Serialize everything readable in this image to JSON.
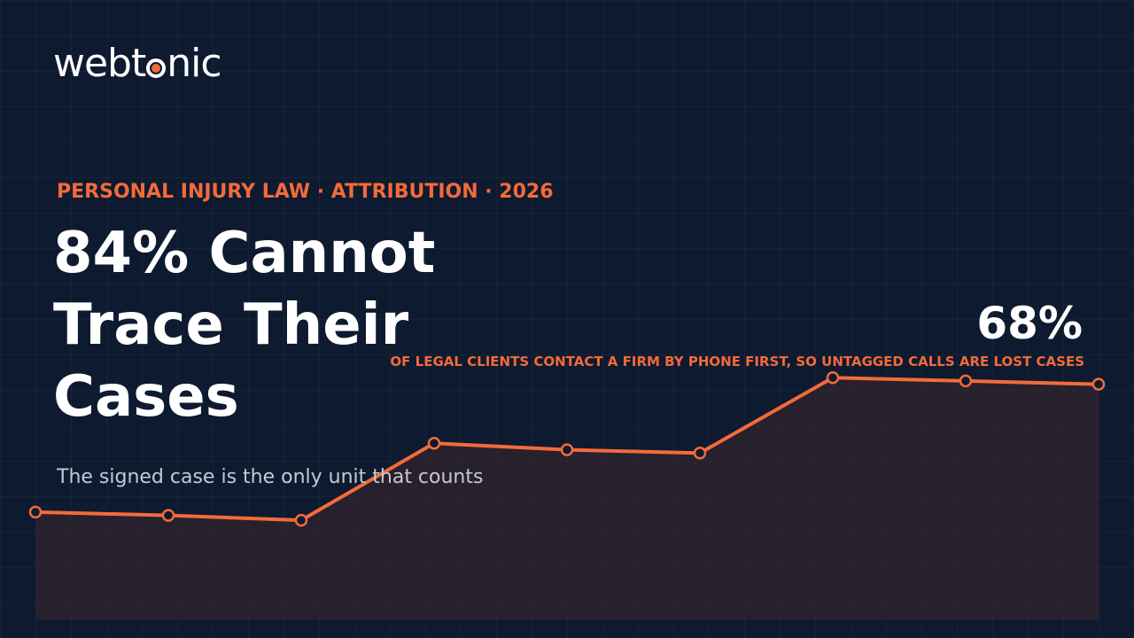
{
  "logo": {
    "left": "webt",
    "right": "nic"
  },
  "kicker": "PERSONAL INJURY LAW · ATTRIBUTION · 2026",
  "title": "84% Cannot Trace Their Cases",
  "subtitle": "The signed case is the only unit that counts",
  "stat": {
    "value": "68%",
    "caption": "OF LEGAL CLIENTS CONTACT A FIRM BY PHONE FIRST, SO UNTAGGED CALLS ARE LOST CASES"
  },
  "chart_data": {
    "type": "line",
    "values": [
      33,
      32,
      30.5,
      54,
      52,
      51,
      74,
      73,
      72
    ],
    "ylim": [
      0,
      100
    ],
    "color": "#f26b3a"
  }
}
